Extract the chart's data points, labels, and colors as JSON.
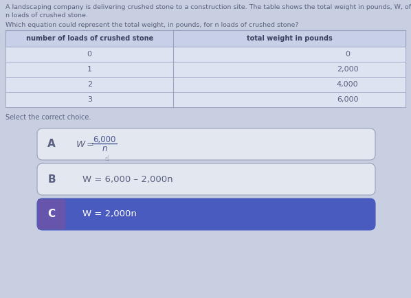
{
  "bg_color": "#c8cfe0",
  "title_line1": "A landscaping company is delivering crushed stone to a construction site. The table shows the total weight in pounds, W, of",
  "title_line2": "n loads of crushed stone.",
  "question": "Which equation could represent the total weight, in pounds, for n loads of crushed stone?",
  "col1_header": "number of loads of crushed stone",
  "col2_header": "total weight in pounds",
  "table_data": [
    [
      "0",
      "0"
    ],
    [
      "1",
      "2,000"
    ],
    [
      "2",
      "4,000"
    ],
    [
      "3",
      "6,000"
    ]
  ],
  "select_text": "Select the correct choice.",
  "choice_A_label": "A",
  "choice_A_numerator": "6,000",
  "choice_A_denominator": "n",
  "choice_B_label": "B",
  "choice_B_text": "W = 6,000 – 2,000n",
  "choice_C_label": "C",
  "choice_C_text": "W = 2,000n",
  "choice_A_bg": "#e2e7f0",
  "choice_B_bg": "#e2e7f0",
  "choice_C_bg": "#4a5bbf",
  "choice_C_text_color": "#ffffff",
  "box_border_color": "#9aa0b8",
  "table_row_bg": "#dde3f0",
  "table_header_bg": "#c8d0e8",
  "table_border_color": "#9aa0c0",
  "text_color": "#5a6080",
  "header_bold_color": "#3a4060",
  "choice_label_color": "#5a6080",
  "wequals_color": "#5a6080",
  "frac_color": "#4a5890"
}
